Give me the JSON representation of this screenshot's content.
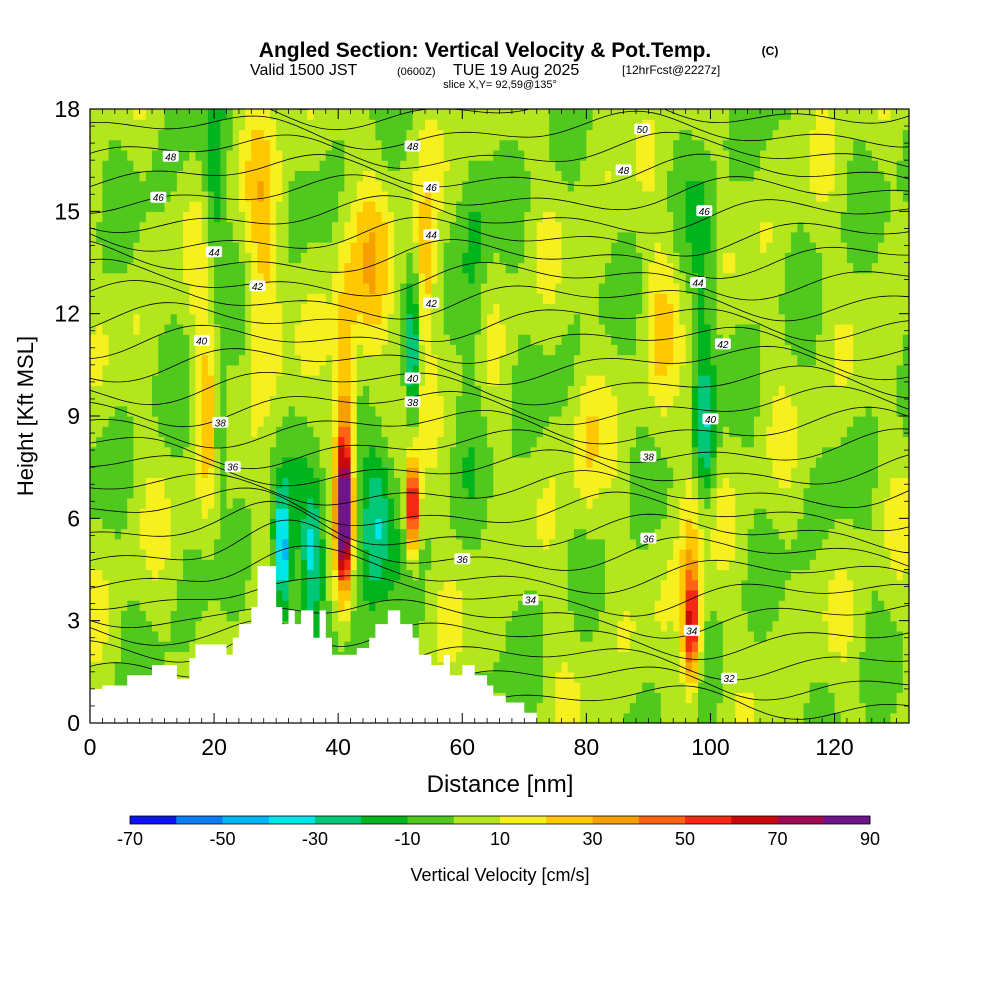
{
  "chart_data": {
    "type": "heatmap",
    "title_main": "Angled Section: Vertical Velocity & Pot.Temp.",
    "title_tag": "(C)",
    "subtitle_parts": {
      "valid": "Valid 1500 JST",
      "utc": "(0600Z)",
      "date": "TUE 19 Aug 2025",
      "fcst": "[12hrFcst@2227z]"
    },
    "slice": "slice X,Y= 92,59@135°",
    "xlabel": "Distance [nm]",
    "ylabel": "Height [Kft MSL]",
    "xlim": [
      0,
      132
    ],
    "ylim": [
      0,
      18
    ],
    "x_ticks": [
      "0",
      "20",
      "40",
      "60",
      "80",
      "100",
      "120"
    ],
    "y_ticks": [
      "0",
      "3",
      "6",
      "9",
      "12",
      "15",
      "18"
    ],
    "colorbar": {
      "label": "Vertical Velocity [cm/s]",
      "tick_labels": [
        "-70",
        "-50",
        "-30",
        "-10",
        "10",
        "30",
        "50",
        "70",
        "90"
      ],
      "levels": [
        -70,
        -60,
        -50,
        -40,
        -30,
        -20,
        -10,
        0,
        10,
        20,
        30,
        40,
        50,
        60,
        70,
        80,
        90
      ],
      "colors": [
        "#0a14f0",
        "#0a7df5",
        "#00b4f5",
        "#00e6e6",
        "#00c878",
        "#00b41e",
        "#50c81e",
        "#b4e61e",
        "#f5f01e",
        "#ffc800",
        "#f5a000",
        "#ff6414",
        "#f52814",
        "#c80a0a",
        "#a00a50",
        "#6e148c"
      ]
    },
    "theta_contours_label": "Pot.Temp. (C)",
    "theta_labels": [
      {
        "text": "50",
        "x": 89,
        "y": 17.4
      },
      {
        "text": "48",
        "x": 13,
        "y": 16.6
      },
      {
        "text": "48",
        "x": 52,
        "y": 16.9
      },
      {
        "text": "48",
        "x": 86,
        "y": 16.2
      },
      {
        "text": "46",
        "x": 11,
        "y": 15.4
      },
      {
        "text": "46",
        "x": 55,
        "y": 15.7
      },
      {
        "text": "46",
        "x": 99,
        "y": 15.0
      },
      {
        "text": "44",
        "x": 20,
        "y": 13.8
      },
      {
        "text": "44",
        "x": 55,
        "y": 14.3
      },
      {
        "text": "44",
        "x": 98,
        "y": 12.9
      },
      {
        "text": "42",
        "x": 27,
        "y": 12.8
      },
      {
        "text": "42",
        "x": 55,
        "y": 12.3
      },
      {
        "text": "42",
        "x": 102,
        "y": 11.1
      },
      {
        "text": "40",
        "x": 18,
        "y": 11.2
      },
      {
        "text": "40",
        "x": 52,
        "y": 10.1
      },
      {
        "text": "40",
        "x": 100,
        "y": 8.9
      },
      {
        "text": "38",
        "x": 21,
        "y": 8.8
      },
      {
        "text": "38",
        "x": 52,
        "y": 9.4
      },
      {
        "text": "38",
        "x": 90,
        "y": 7.8
      },
      {
        "text": "36",
        "x": 23,
        "y": 7.5
      },
      {
        "text": "36",
        "x": 60,
        "y": 4.8
      },
      {
        "text": "36",
        "x": 90,
        "y": 5.4
      },
      {
        "text": "34",
        "x": 71,
        "y": 3.6
      },
      {
        "text": "34",
        "x": 97,
        "y": 2.7
      },
      {
        "text": "32",
        "x": 103,
        "y": 1.3
      }
    ]
  }
}
